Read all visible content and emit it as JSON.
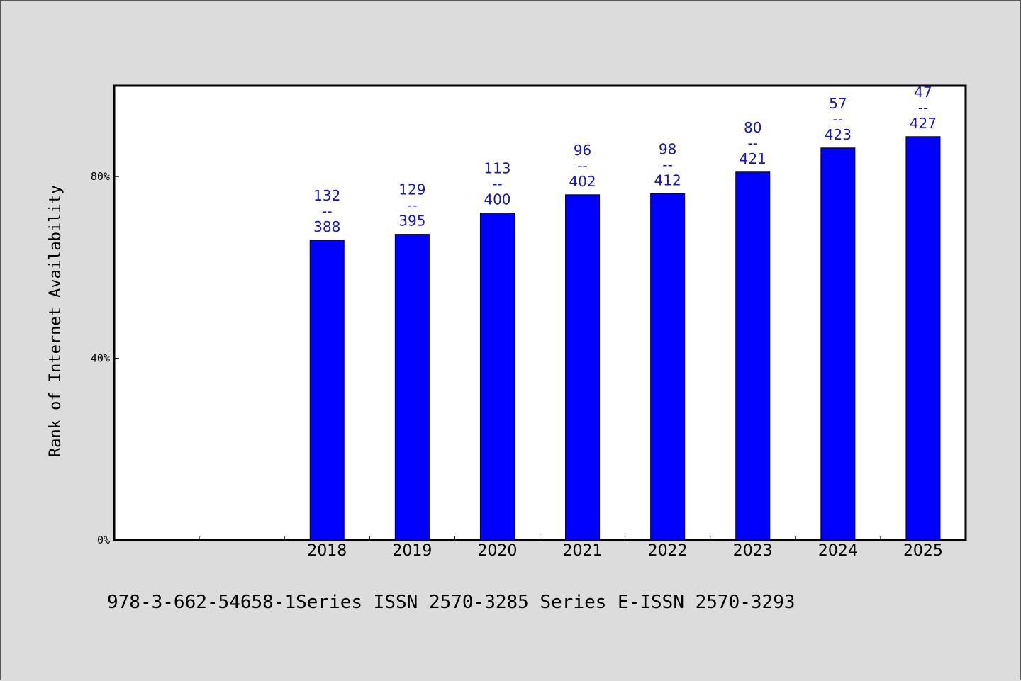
{
  "chart_data": {
    "type": "bar",
    "ylabel": "Rank of Internet Availability",
    "ylim": [
      0,
      100
    ],
    "yticks": [
      0,
      40,
      80
    ],
    "ytick_labels": [
      "0%",
      "40%",
      "80%"
    ],
    "categories": [
      "",
      "",
      "2018",
      "2019",
      "2020",
      "2021",
      "2022",
      "2023",
      "2024",
      "2025"
    ],
    "values": [
      null,
      null,
      66.0,
      67.3,
      72.0,
      76.0,
      76.2,
      81.0,
      86.3,
      88.8
    ],
    "data_labels": [
      null,
      null,
      [
        "132",
        "--",
        "388"
      ],
      [
        "129",
        "--",
        "395"
      ],
      [
        "113",
        "--",
        "400"
      ],
      [
        "96",
        "--",
        "402"
      ],
      [
        "98",
        "--",
        "412"
      ],
      [
        "80",
        "--",
        "421"
      ],
      [
        "57",
        "--",
        "423"
      ],
      [
        "47",
        "--",
        "427"
      ]
    ],
    "bar_color": "#0000ff",
    "label_color": "#1414c8",
    "grid": false,
    "legend": "none"
  },
  "footer": "978-3-662-54658-1Series ISSN 2570-3285 Series E-ISSN 2570-3293"
}
